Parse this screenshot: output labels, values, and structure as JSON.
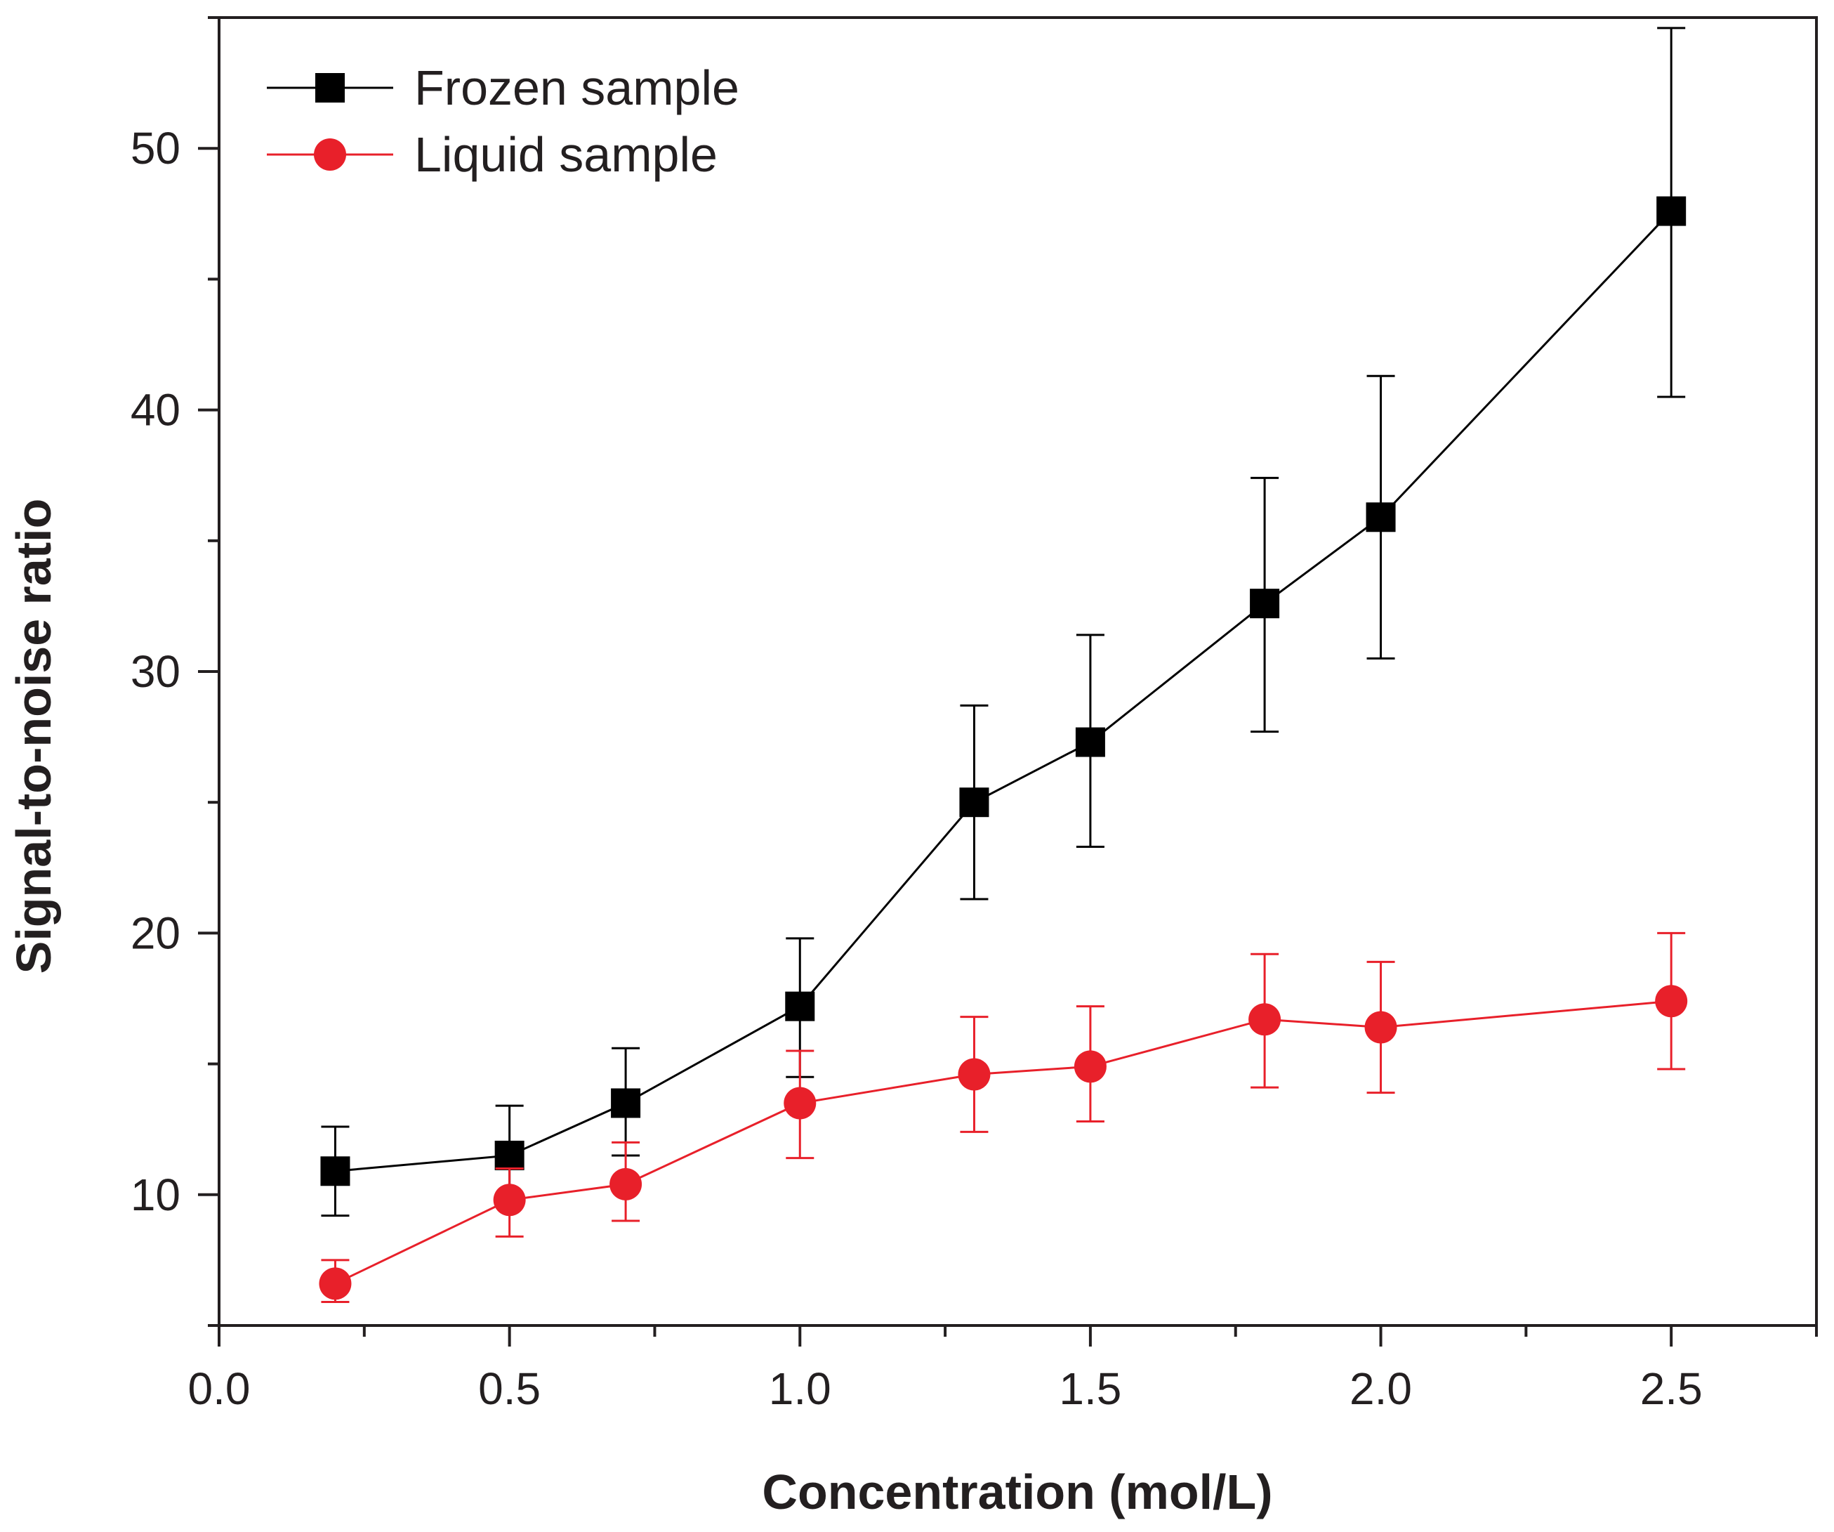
{
  "chart_data": {
    "type": "line",
    "title": "",
    "xlabel": "Concentration (mol/L)",
    "ylabel": "Signal-to-noise ratio",
    "xlim": [
      0.0,
      2.75
    ],
    "ylim": [
      5,
      55
    ],
    "grid": false,
    "legend_position": "top-left",
    "x_ticks": [
      "0.0",
      "0.5",
      "1.0",
      "1.5",
      "2.0",
      "2.5"
    ],
    "x_tick_values": [
      0.0,
      0.5,
      1.0,
      1.5,
      2.0,
      2.5
    ],
    "x_minor_tick_values": [
      0.25,
      0.75,
      1.25,
      1.75,
      2.25,
      2.75
    ],
    "y_ticks": [
      "10",
      "20",
      "30",
      "40",
      "50"
    ],
    "y_tick_values": [
      10,
      20,
      30,
      40,
      50
    ],
    "y_minor_tick_values": [
      5,
      15,
      25,
      35,
      45,
      55
    ],
    "series": [
      {
        "name": "Frozen sample",
        "color": "#000000",
        "marker": "square",
        "x": [
          0.2,
          0.5,
          0.7,
          1.0,
          1.3,
          1.5,
          1.8,
          2.0,
          2.5
        ],
        "y": [
          10.9,
          11.5,
          13.5,
          17.2,
          25.0,
          27.3,
          32.6,
          35.9,
          47.6
        ],
        "y_err_low": [
          9.2,
          9.8,
          11.5,
          14.5,
          21.3,
          23.3,
          27.7,
          30.5,
          40.5
        ],
        "y_err_high": [
          12.6,
          13.4,
          15.6,
          19.8,
          28.7,
          31.4,
          37.4,
          41.3,
          54.6
        ]
      },
      {
        "name": "Liquid sample",
        "color": "#e8202a",
        "marker": "circle",
        "x": [
          0.2,
          0.5,
          0.7,
          1.0,
          1.3,
          1.5,
          1.8,
          2.0,
          2.5
        ],
        "y": [
          6.6,
          9.8,
          10.4,
          13.5,
          14.6,
          14.9,
          16.7,
          16.4,
          17.4
        ],
        "y_err_low": [
          5.9,
          8.4,
          9.0,
          11.4,
          12.4,
          12.8,
          14.1,
          13.9,
          14.8
        ],
        "y_err_high": [
          7.5,
          11.0,
          12.0,
          15.5,
          16.8,
          17.2,
          19.2,
          18.9,
          20.0
        ]
      }
    ]
  }
}
